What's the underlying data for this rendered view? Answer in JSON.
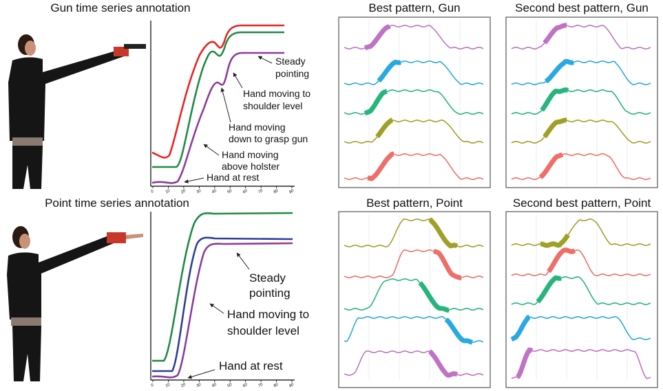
{
  "gun": {
    "title": "Gun time series annotation",
    "xticks": [
      0,
      10,
      20,
      30,
      40,
      50,
      60,
      70,
      80,
      90
    ],
    "annotations": [
      {
        "lines": [
          "Steady",
          "pointing"
        ]
      },
      {
        "lines": [
          "Hand moving to",
          "shoulder level"
        ]
      },
      {
        "lines": [
          "Hand moving",
          "down to grasp gun"
        ]
      },
      {
        "lines": [
          "Hand moving",
          "above holster"
        ]
      },
      {
        "lines": [
          "Hand at rest"
        ]
      }
    ]
  },
  "point": {
    "title": "Point time series annotation",
    "xticks": [
      0,
      10,
      20,
      30,
      40,
      50,
      60,
      70,
      80,
      90
    ],
    "annotations": [
      {
        "lines": [
          "Steady",
          "pointing"
        ]
      },
      {
        "lines": [
          "Hand moving to",
          "shoulder level"
        ]
      },
      {
        "lines": [
          "Hand at rest"
        ]
      }
    ]
  },
  "panels": [
    {
      "title": "Best pattern, Gun"
    },
    {
      "title": "Second best pattern, Gun"
    },
    {
      "title": "Best pattern, Point"
    },
    {
      "title": "Second best pattern, Point"
    }
  ]
}
